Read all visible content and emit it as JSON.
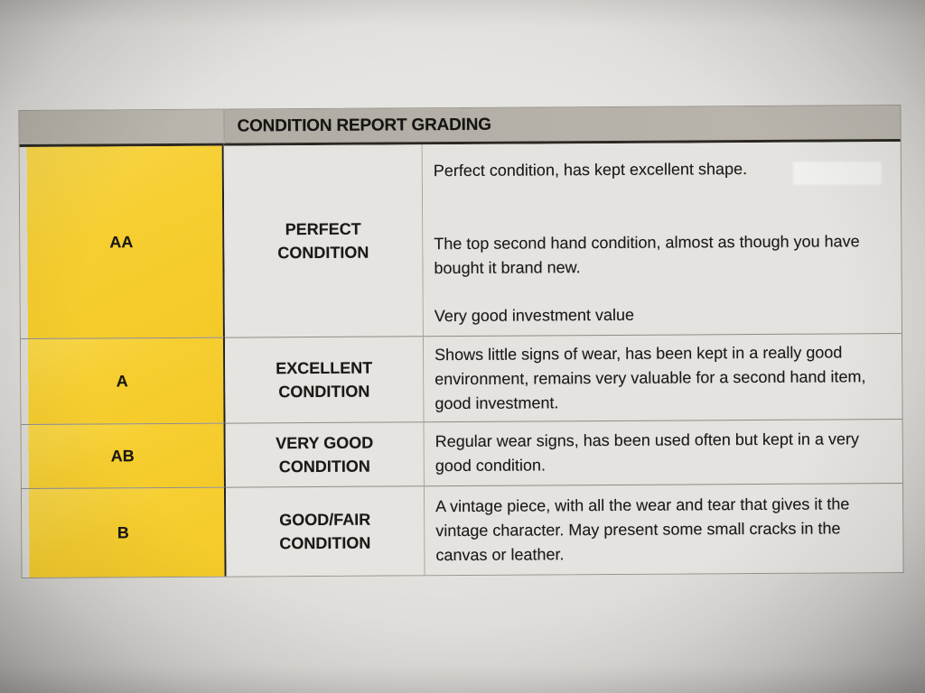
{
  "document": {
    "kind": "photographed printed table",
    "title": "CONDITION REPORT GRADING",
    "rows": [
      {
        "grade": "AA",
        "condition": "PERFECT CONDITION",
        "paragraphs": [
          "Perfect condition, has kept excellent shape.",
          "The top second hand condition, almost as though you have bought it brand new.",
          "Very good investment value"
        ]
      },
      {
        "grade": "A",
        "condition": "EXCELLENT CONDITION",
        "paragraphs": [
          "Shows little signs of wear, has been kept in a really good environment, remains very valuable for a second hand item, good investment."
        ]
      },
      {
        "grade": "AB",
        "condition": "VERY GOOD CONDITION",
        "paragraphs": [
          "Regular wear signs, has been used often but kept in a very good condition."
        ]
      },
      {
        "grade": "B",
        "condition": "GOOD/FAIR CONDITION",
        "paragraphs": [
          "A vintage piece, with all the wear and tear that gives it the vintage character. May present some small cracks in the canvas or leather."
        ]
      }
    ],
    "colors": {
      "grade_column": "#F6CE30",
      "header_bar": "#B5B1A8",
      "cell_background": "#E5E3DF",
      "paper_background": "#E0DEDA",
      "heavy_line": "#2B2822",
      "text": "#1B1A18"
    }
  }
}
